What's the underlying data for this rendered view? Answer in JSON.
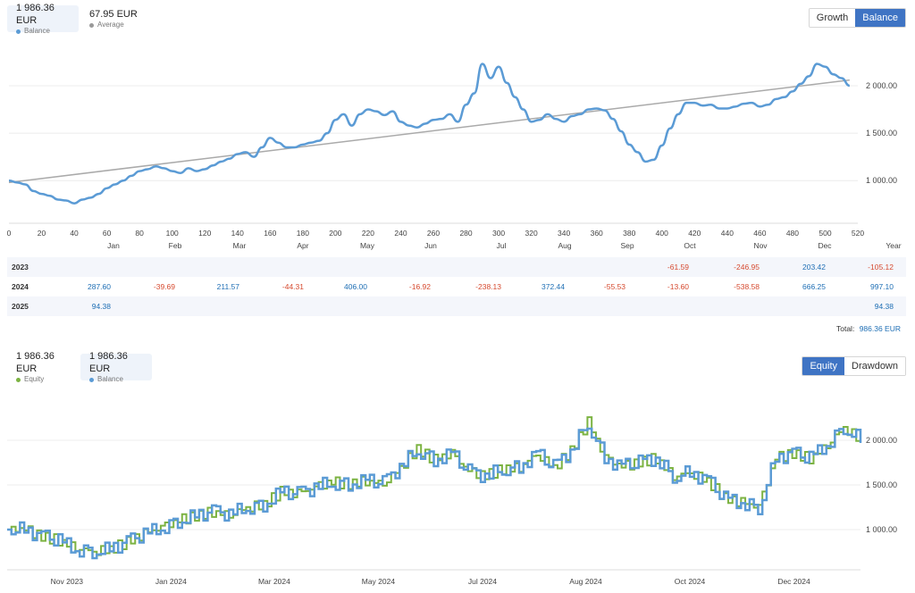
{
  "top": {
    "legend": [
      {
        "value": "1 986.36 EUR",
        "label": "Balance",
        "color": "#5b9bd5",
        "active": true
      },
      {
        "value": "67.95 EUR",
        "label": "Average",
        "color": "#999999",
        "active": false
      }
    ],
    "buttons": [
      {
        "label": "Growth",
        "active": false
      },
      {
        "label": "Balance",
        "active": true
      }
    ]
  },
  "bottom": {
    "legend": [
      {
        "value": "1 986.36 EUR",
        "label": "Equity",
        "color": "#7cb342",
        "active": false
      },
      {
        "value": "1 986.36 EUR",
        "label": "Balance",
        "color": "#5b9bd5",
        "active": true
      }
    ],
    "buttons": [
      {
        "label": "Equity",
        "active": true
      },
      {
        "label": "Drawdown",
        "active": false
      }
    ]
  },
  "table": {
    "headers": [
      "Jan",
      "Feb",
      "Mar",
      "Apr",
      "May",
      "Jun",
      "Jul",
      "Aug",
      "Sep",
      "Oct",
      "Nov",
      "Dec",
      "Year"
    ],
    "rows": [
      {
        "year": "2023",
        "cells": [
          "",
          "",
          "",
          "",
          "",
          "",
          "",
          "",
          "",
          "-61.59",
          "-246.95",
          "203.42",
          "-105.12"
        ]
      },
      {
        "year": "2024",
        "cells": [
          "287.60",
          "-39.69",
          "211.57",
          "-44.31",
          "406.00",
          "-16.92",
          "-238.13",
          "372.44",
          "-55.53",
          "-13.60",
          "-538.58",
          "666.25",
          "997.10"
        ]
      },
      {
        "year": "2025",
        "cells": [
          "94.38",
          "",
          "",
          "",
          "",
          "",
          "",
          "",
          "",
          "",
          "",
          "",
          "94.38"
        ]
      }
    ],
    "total_label": "Total:",
    "total_value": "986.36 EUR"
  },
  "chart_data": [
    {
      "type": "line",
      "series": [
        {
          "name": "Balance",
          "color": "#5b9bd5",
          "x": [
            0,
            5,
            10,
            15,
            20,
            25,
            30,
            35,
            40,
            45,
            50,
            55,
            60,
            65,
            70,
            75,
            80,
            85,
            90,
            95,
            100,
            105,
            110,
            115,
            120,
            125,
            130,
            135,
            140,
            145,
            150,
            155,
            160,
            165,
            170,
            175,
            180,
            185,
            190,
            195,
            200,
            205,
            210,
            215,
            220,
            225,
            230,
            235,
            240,
            245,
            250,
            255,
            260,
            265,
            270,
            275,
            280,
            285,
            290,
            295,
            300,
            305,
            310,
            315,
            320,
            325,
            330,
            335,
            340,
            345,
            350,
            355,
            360,
            365,
            370,
            375,
            380,
            385,
            390,
            395,
            400,
            405,
            410,
            415,
            420,
            425,
            430,
            435,
            440,
            445,
            450,
            455,
            460,
            465,
            470,
            475,
            480,
            485,
            490,
            495,
            500,
            505,
            510,
            515
          ],
          "y": [
            1000,
            980,
            960,
            890,
            860,
            840,
            800,
            790,
            760,
            800,
            820,
            860,
            920,
            960,
            1000,
            1050,
            1100,
            1120,
            1150,
            1130,
            1100,
            1080,
            1130,
            1100,
            1120,
            1160,
            1200,
            1230,
            1280,
            1300,
            1250,
            1350,
            1450,
            1400,
            1350,
            1350,
            1380,
            1400,
            1420,
            1500,
            1640,
            1700,
            1580,
            1700,
            1750,
            1730,
            1690,
            1730,
            1620,
            1580,
            1560,
            1600,
            1640,
            1650,
            1700,
            1620,
            1800,
            1920,
            2230,
            2080,
            2200,
            2030,
            1880,
            1750,
            1620,
            1640,
            1700,
            1650,
            1620,
            1680,
            1700,
            1750,
            1760,
            1740,
            1650,
            1520,
            1380,
            1300,
            1200,
            1220,
            1370,
            1550,
            1700,
            1820,
            1820,
            1790,
            1800,
            1760,
            1760,
            1780,
            1810,
            1820,
            1780,
            1800,
            1860,
            1880,
            1940,
            2020,
            2100,
            2230,
            2200,
            2120,
            2080,
            2000
          ]
        },
        {
          "name": "Average",
          "color": "#aaaaaa",
          "x": [
            0,
            515
          ],
          "y": [
            980,
            2060
          ]
        }
      ],
      "x_ticks": [
        0,
        20,
        40,
        60,
        80,
        100,
        120,
        140,
        160,
        180,
        200,
        220,
        240,
        260,
        280,
        300,
        320,
        340,
        360,
        380,
        400,
        420,
        440,
        460,
        480,
        500,
        520
      ],
      "y_ticks": [
        "1 000.00",
        "1 500.00",
        "2 000.00"
      ],
      "y_tick_values": [
        1000,
        1500,
        2000
      ],
      "xlim": [
        0,
        520
      ],
      "ylim": [
        550,
        2480
      ],
      "grid": true
    },
    {
      "type": "line",
      "x_ticks": [
        "Nov 2023",
        "Jan 2024",
        "Mar 2024",
        "May 2024",
        "Jul 2024",
        "Aug 2024",
        "Oct 2024",
        "Dec 2024"
      ],
      "x_tick_positions": [
        0.07,
        0.192,
        0.313,
        0.435,
        0.557,
        0.678,
        0.8,
        0.922
      ],
      "y_ticks": [
        "1 000.00",
        "1 500.00",
        "2 000.00"
      ],
      "y_tick_values": [
        1000,
        1500,
        2000
      ],
      "ylim": [
        550,
        2480
      ],
      "series": [
        {
          "name": "Equity",
          "color": "#7cb342",
          "x": [
            0,
            0.02,
            0.04,
            0.06,
            0.08,
            0.1,
            0.12,
            0.14,
            0.16,
            0.18,
            0.2,
            0.22,
            0.24,
            0.26,
            0.28,
            0.3,
            0.32,
            0.34,
            0.36,
            0.38,
            0.4,
            0.42,
            0.44,
            0.46,
            0.48,
            0.5,
            0.52,
            0.54,
            0.56,
            0.58,
            0.6,
            0.62,
            0.64,
            0.66,
            0.68,
            0.7,
            0.72,
            0.74,
            0.76,
            0.78,
            0.8,
            0.82,
            0.84,
            0.86,
            0.88,
            0.9,
            0.92,
            0.94,
            0.96,
            0.98,
            1.0
          ],
          "y": [
            1000,
            1000,
            920,
            880,
            800,
            760,
            780,
            860,
            950,
            1020,
            1100,
            1150,
            1200,
            1170,
            1250,
            1280,
            1420,
            1400,
            1470,
            1530,
            1510,
            1550,
            1520,
            1700,
            1900,
            1780,
            1850,
            1650,
            1600,
            1680,
            1700,
            1850,
            1700,
            1880,
            2200,
            1800,
            1700,
            1750,
            1800,
            1600,
            1640,
            1550,
            1350,
            1300,
            1250,
            1800,
            1850,
            1800,
            1950,
            2150,
            2000
          ]
        },
        {
          "name": "Balance",
          "color": "#5b9bd5",
          "x": [
            0,
            0.02,
            0.04,
            0.06,
            0.08,
            0.1,
            0.12,
            0.14,
            0.16,
            0.18,
            0.2,
            0.22,
            0.24,
            0.26,
            0.28,
            0.3,
            0.32,
            0.34,
            0.36,
            0.38,
            0.4,
            0.42,
            0.44,
            0.46,
            0.48,
            0.5,
            0.52,
            0.54,
            0.56,
            0.58,
            0.6,
            0.62,
            0.64,
            0.66,
            0.68,
            0.7,
            0.72,
            0.74,
            0.76,
            0.78,
            0.8,
            0.82,
            0.84,
            0.86,
            0.88,
            0.9,
            0.92,
            0.94,
            0.96,
            0.98,
            1.0
          ],
          "y": [
            1000,
            1000,
            920,
            880,
            780,
            760,
            780,
            860,
            950,
            1020,
            1100,
            1150,
            1200,
            1170,
            1250,
            1280,
            1420,
            1400,
            1470,
            1530,
            1510,
            1550,
            1520,
            1700,
            1900,
            1780,
            1850,
            1650,
            1600,
            1680,
            1700,
            1850,
            1700,
            1880,
            2200,
            1800,
            1700,
            1750,
            1800,
            1600,
            1640,
            1550,
            1350,
            1300,
            1250,
            1800,
            1850,
            1800,
            1950,
            2150,
            2000
          ]
        }
      ],
      "grid": true
    }
  ]
}
